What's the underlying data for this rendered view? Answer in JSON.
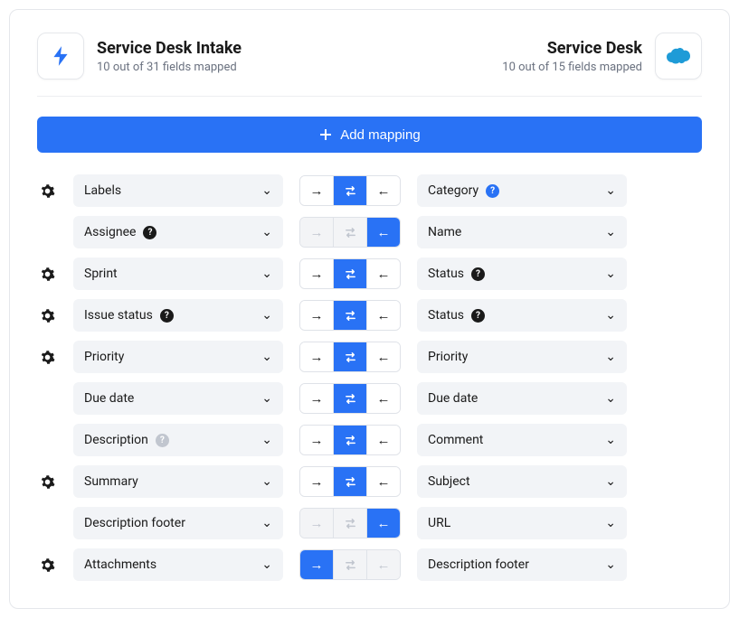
{
  "left_system": {
    "title": "Service Desk Intake",
    "subtitle": "10 out of 31 fields mapped"
  },
  "right_system": {
    "title": "Service Desk",
    "subtitle": "10 out of 15 fields mapped"
  },
  "add_button_label": "Add mapping",
  "mappings": [
    {
      "gear": true,
      "left": "Labels",
      "left_help": null,
      "right": "Category",
      "right_help": "blue",
      "dir": "both"
    },
    {
      "gear": false,
      "left": "Assignee",
      "left_help": "dark",
      "right": "Name",
      "right_help": null,
      "dir": "from_right"
    },
    {
      "gear": true,
      "left": "Sprint",
      "left_help": null,
      "right": "Status",
      "right_help": "dark",
      "dir": "both"
    },
    {
      "gear": true,
      "left": "Issue status",
      "left_help": "dark",
      "right": "Status",
      "right_help": "dark",
      "dir": "both"
    },
    {
      "gear": true,
      "left": "Priority",
      "left_help": null,
      "right": "Priority",
      "right_help": null,
      "dir": "both"
    },
    {
      "gear": false,
      "left": "Due date",
      "left_help": null,
      "right": "Due date",
      "right_help": null,
      "dir": "both"
    },
    {
      "gear": false,
      "left": "Description",
      "left_help": "grey",
      "right": "Comment",
      "right_help": null,
      "dir": "both"
    },
    {
      "gear": true,
      "left": "Summary",
      "left_help": null,
      "right": "Subject",
      "right_help": null,
      "dir": "both"
    },
    {
      "gear": false,
      "left": "Description footer",
      "left_help": null,
      "right": "URL",
      "right_help": null,
      "dir": "from_right"
    },
    {
      "gear": true,
      "left": "Attachments",
      "left_help": null,
      "right": "Description footer",
      "right_help": null,
      "dir": "to_right"
    }
  ],
  "colors": {
    "primary": "#2972f5",
    "pill_bg": "#f2f4f7",
    "border": "#e5e7eb",
    "muted": "#6b7280"
  }
}
